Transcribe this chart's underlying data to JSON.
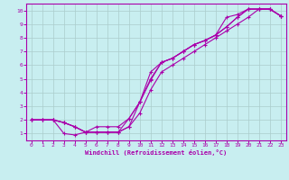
{
  "bg_color": "#c8eef0",
  "line_color": "#aa00aa",
  "grid_color": "#aacccc",
  "xlabel": "Windchill (Refroidissement éolien,°C)",
  "xlim": [
    -0.5,
    23.5
  ],
  "ylim": [
    0.5,
    10.5
  ],
  "xticks": [
    0,
    1,
    2,
    3,
    4,
    5,
    6,
    7,
    8,
    9,
    10,
    11,
    12,
    13,
    14,
    15,
    16,
    17,
    18,
    19,
    20,
    21,
    22,
    23
  ],
  "yticks": [
    1,
    2,
    3,
    4,
    5,
    6,
    7,
    8,
    9,
    10
  ],
  "lines": [
    {
      "x": [
        0,
        1,
        2,
        3,
        4,
        5,
        6,
        7,
        8,
        9,
        10,
        11,
        12,
        13,
        14,
        15,
        16,
        17,
        18,
        19,
        20,
        21,
        22,
        23
      ],
      "y": [
        2,
        2,
        2,
        1.8,
        1.5,
        1.1,
        1.1,
        1.1,
        1.1,
        1.5,
        3.3,
        5.0,
        6.2,
        6.5,
        7.0,
        7.5,
        7.8,
        8.2,
        8.8,
        9.5,
        10.1,
        10.1,
        10.1,
        9.6
      ]
    },
    {
      "x": [
        0,
        1,
        2,
        3,
        4,
        5,
        6,
        7,
        8,
        9,
        10,
        11,
        12,
        13,
        14,
        15,
        16,
        17,
        18,
        19,
        20,
        21,
        22,
        23
      ],
      "y": [
        2,
        2,
        2,
        1.8,
        1.5,
        1.1,
        1.1,
        1.1,
        1.1,
        1.5,
        2.5,
        4.2,
        5.5,
        6.0,
        6.5,
        7.0,
        7.5,
        8.0,
        8.5,
        9.0,
        9.5,
        10.1,
        10.1,
        9.6
      ]
    },
    {
      "x": [
        0,
        1,
        2,
        3,
        4,
        5,
        6,
        7,
        8,
        9,
        10,
        11,
        12,
        13,
        14,
        15,
        16,
        17,
        18,
        19,
        20,
        21,
        22,
        23
      ],
      "y": [
        2,
        2,
        2,
        1.8,
        1.5,
        1.1,
        1.1,
        1.1,
        1.1,
        2.1,
        3.3,
        4.9,
        6.2,
        6.5,
        7.0,
        7.5,
        7.8,
        8.2,
        9.5,
        9.7,
        10.1,
        10.1,
        10.1,
        9.6
      ]
    },
    {
      "x": [
        0,
        2,
        3,
        4,
        5,
        6,
        7,
        8,
        9,
        10,
        11,
        12,
        13,
        14,
        15,
        16,
        17,
        18,
        19,
        20,
        21,
        22,
        23
      ],
      "y": [
        2,
        2,
        1.0,
        0.9,
        1.1,
        1.5,
        1.5,
        1.5,
        2.1,
        3.3,
        5.5,
        6.2,
        6.5,
        7.0,
        7.5,
        7.8,
        8.2,
        8.8,
        9.5,
        10.1,
        10.1,
        10.1,
        9.6
      ]
    }
  ]
}
